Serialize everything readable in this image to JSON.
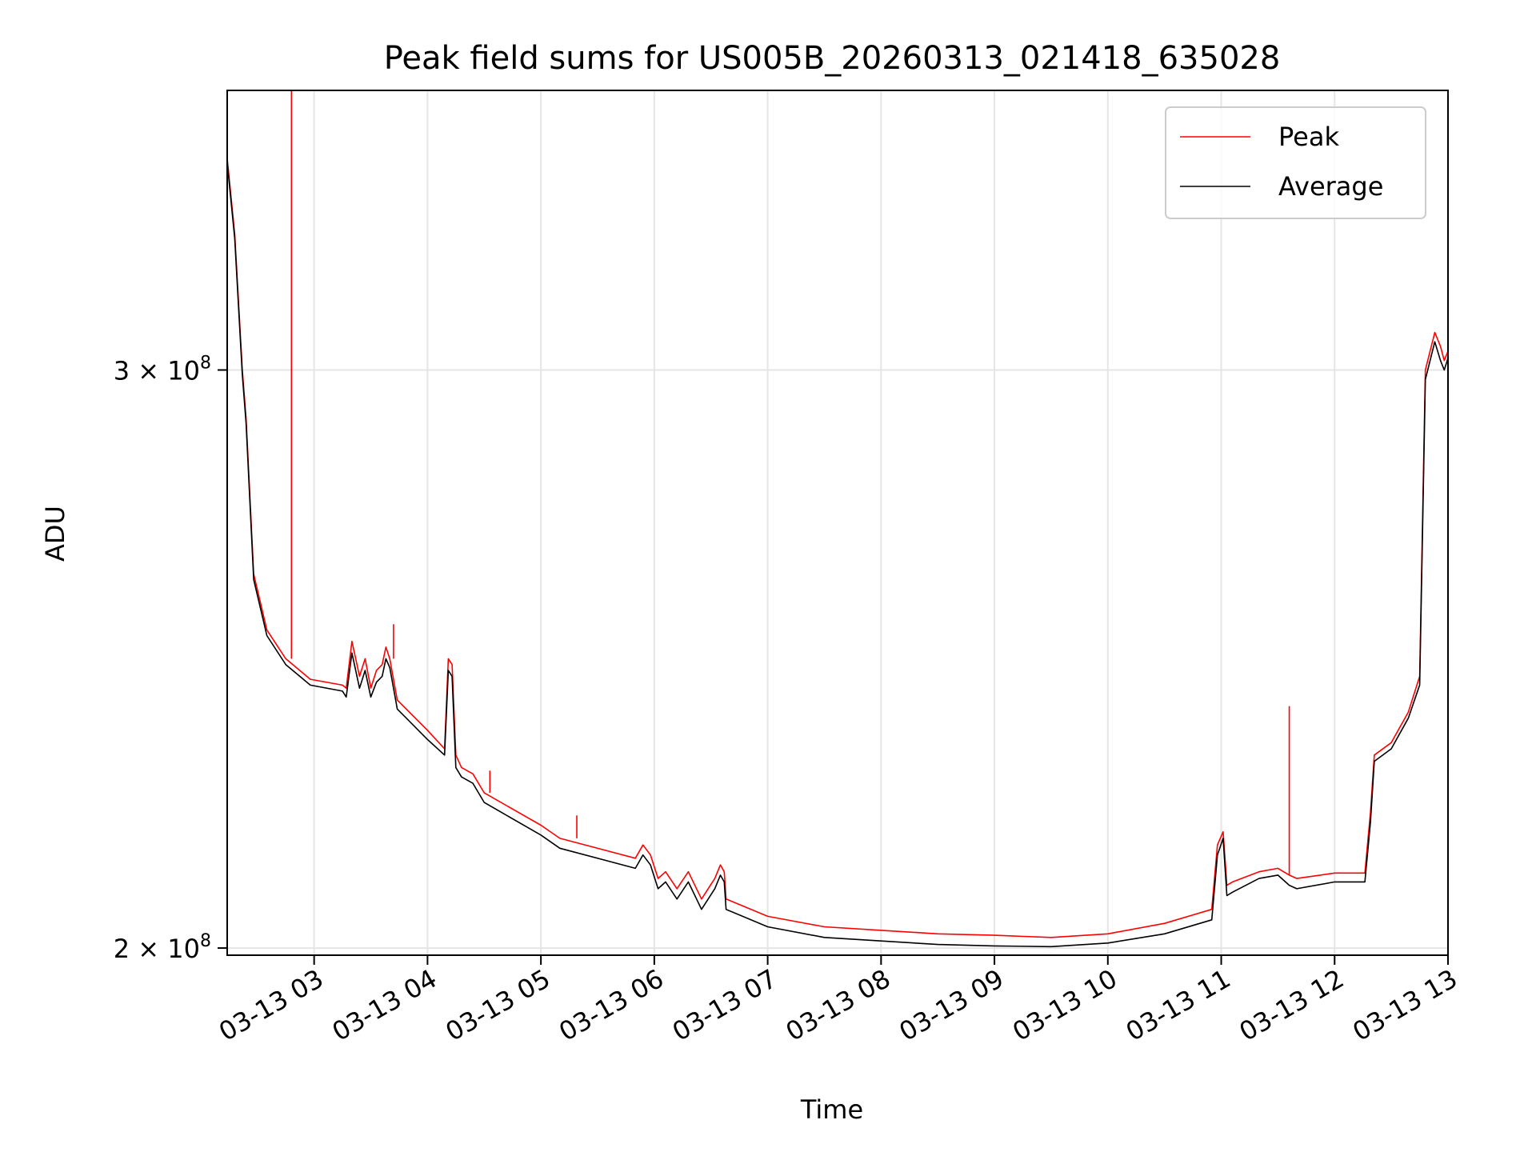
{
  "chart_data": {
    "type": "line",
    "title": "Peak field sums for US005B_20260313_021418_635028",
    "xlabel": "Time",
    "ylabel": "ADU",
    "yscale": "log",
    "xlim": [
      "03-13 02:14",
      "03-13 13:00"
    ],
    "ylim": [
      199000000,
      365000000
    ],
    "grid": true,
    "legend_position": "upper right",
    "x_ticks": [
      "03-13 03",
      "03-13 04",
      "03-13 05",
      "03-13 06",
      "03-13 07",
      "03-13 08",
      "03-13 09",
      "03-13 10",
      "03-13 11",
      "03-13 12",
      "03-13 13"
    ],
    "y_ticks": [
      {
        "value": 200000000,
        "mantissa": "2",
        "base": "10",
        "exponent": "8"
      },
      {
        "value": 300000000,
        "mantissa": "3",
        "base": "10",
        "exponent": "8"
      }
    ],
    "series": [
      {
        "name": "Peak",
        "color": "#ff0000",
        "x": [
          "03-13 02:14",
          "03-13 02:18",
          "03-13 02:22",
          "03-13 02:24",
          "03-13 02:28",
          "03-13 02:35",
          "03-13 02:45",
          "03-13 02:58",
          "03-13 03:15",
          "03-13 03:17",
          "03-13 03:20",
          "03-13 03:24",
          "03-13 03:27",
          "03-13 03:30",
          "03-13 03:33",
          "03-13 03:36",
          "03-13 03:38",
          "03-13 03:40",
          "03-13 03:44",
          "03-13 04:00",
          "03-13 04:09",
          "03-13 04:11",
          "03-13 04:13",
          "03-13 04:15",
          "03-13 04:18",
          "03-13 04:24",
          "03-13 04:30",
          "03-13 05:00",
          "03-13 05:10",
          "03-13 05:50",
          "03-13 05:54",
          "03-13 05:58",
          "03-13 06:02",
          "03-13 06:06",
          "03-13 06:12",
          "03-13 06:18",
          "03-13 06:25",
          "03-13 06:32",
          "03-13 06:35",
          "03-13 06:37",
          "03-13 06:38",
          "03-13 07:00",
          "03-13 07:30",
          "03-13 08:00",
          "03-13 08:30",
          "03-13 09:00",
          "03-13 09:30",
          "03-13 10:00",
          "03-13 10:30",
          "03-13 10:55",
          "03-13 10:58",
          "03-13 11:01",
          "03-13 11:03",
          "03-13 11:06",
          "03-13 11:20",
          "03-13 11:30",
          "03-13 11:36",
          "03-13 11:40",
          "03-13 12:00",
          "03-13 12:16",
          "03-13 12:19",
          "03-13 12:21",
          "03-13 12:30",
          "03-13 12:39",
          "03-13 12:45",
          "03-13 12:48",
          "03-13 12:53",
          "03-13 12:56",
          "03-13 12:58",
          "03-13 13:00"
        ],
        "values": [
          348000000,
          330000000,
          300000000,
          290000000,
          260000000,
          250000000,
          245000000,
          241500000,
          240500000,
          240000000,
          248000000,
          242000000,
          245000000,
          240000000,
          243000000,
          244000000,
          247000000,
          245000000,
          238000000,
          233000000,
          230000000,
          245000000,
          244000000,
          229000000,
          227000000,
          226000000,
          223000000,
          218000000,
          216000000,
          213000000,
          215000000,
          213500000,
          210000000,
          211000000,
          208500000,
          211000000,
          207000000,
          210000000,
          212000000,
          211000000,
          207000000,
          204500000,
          203000000,
          202500000,
          202000000,
          201800000,
          201500000,
          202000000,
          203500000,
          205500000,
          215000000,
          217000000,
          209000000,
          209500000,
          211000000,
          211500000,
          210500000,
          210000000,
          210800000,
          210800000,
          220000000,
          229000000,
          231000000,
          236000000,
          242000000,
          300000000,
          308000000,
          305000000,
          302000000,
          304000000
        ],
        "spikes": [
          {
            "x": "03-13 02:48",
            "value": 365000000
          },
          {
            "x": "03-13 03:42",
            "value": 251000000
          },
          {
            "x": "03-13 04:33",
            "value": 226500000
          },
          {
            "x": "03-13 05:19",
            "value": 219500000
          },
          {
            "x": "03-13 11:36",
            "value": 237000000
          }
        ]
      },
      {
        "name": "Average",
        "color": "#000000",
        "x": [
          "03-13 02:14",
          "03-13 02:18",
          "03-13 02:22",
          "03-13 02:24",
          "03-13 02:28",
          "03-13 02:35",
          "03-13 02:45",
          "03-13 02:58",
          "03-13 03:15",
          "03-13 03:17",
          "03-13 03:20",
          "03-13 03:24",
          "03-13 03:27",
          "03-13 03:30",
          "03-13 03:33",
          "03-13 03:36",
          "03-13 03:38",
          "03-13 03:40",
          "03-13 03:44",
          "03-13 04:00",
          "03-13 04:09",
          "03-13 04:11",
          "03-13 04:13",
          "03-13 04:15",
          "03-13 04:18",
          "03-13 04:24",
          "03-13 04:30",
          "03-13 05:00",
          "03-13 05:10",
          "03-13 05:50",
          "03-13 05:54",
          "03-13 05:58",
          "03-13 06:02",
          "03-13 06:06",
          "03-13 06:12",
          "03-13 06:18",
          "03-13 06:25",
          "03-13 06:32",
          "03-13 06:35",
          "03-13 06:37",
          "03-13 06:38",
          "03-13 07:00",
          "03-13 07:30",
          "03-13 08:00",
          "03-13 08:30",
          "03-13 09:00",
          "03-13 09:30",
          "03-13 10:00",
          "03-13 10:30",
          "03-13 10:55",
          "03-13 10:58",
          "03-13 11:01",
          "03-13 11:03",
          "03-13 11:06",
          "03-13 11:20",
          "03-13 11:30",
          "03-13 11:36",
          "03-13 11:40",
          "03-13 12:00",
          "03-13 12:16",
          "03-13 12:19",
          "03-13 12:21",
          "03-13 12:30",
          "03-13 12:39",
          "03-13 12:45",
          "03-13 12:48",
          "03-13 12:53",
          "03-13 12:56",
          "03-13 12:58",
          "03-13 13:00"
        ],
        "values": [
          347000000,
          329000000,
          299000000,
          289000000,
          259000000,
          249000000,
          244000000,
          240500000,
          239500000,
          238500000,
          246000000,
          240000000,
          243000000,
          238500000,
          241000000,
          242000000,
          245000000,
          243500000,
          236500000,
          231500000,
          229000000,
          243000000,
          242000000,
          227000000,
          225500000,
          224500000,
          221500000,
          216500000,
          214500000,
          211500000,
          213500000,
          212000000,
          208500000,
          209500000,
          207000000,
          209500000,
          205500000,
          208500000,
          210500000,
          209500000,
          205500000,
          203000000,
          201500000,
          201000000,
          200500000,
          200300000,
          200200000,
          200700000,
          202000000,
          204000000,
          213500000,
          216000000,
          207500000,
          208000000,
          210000000,
          210500000,
          209000000,
          208500000,
          209500000,
          209500000,
          218500000,
          228000000,
          230000000,
          235000000,
          240500000,
          298000000,
          306000000,
          302000000,
          300000000,
          302500000
        ]
      }
    ]
  }
}
